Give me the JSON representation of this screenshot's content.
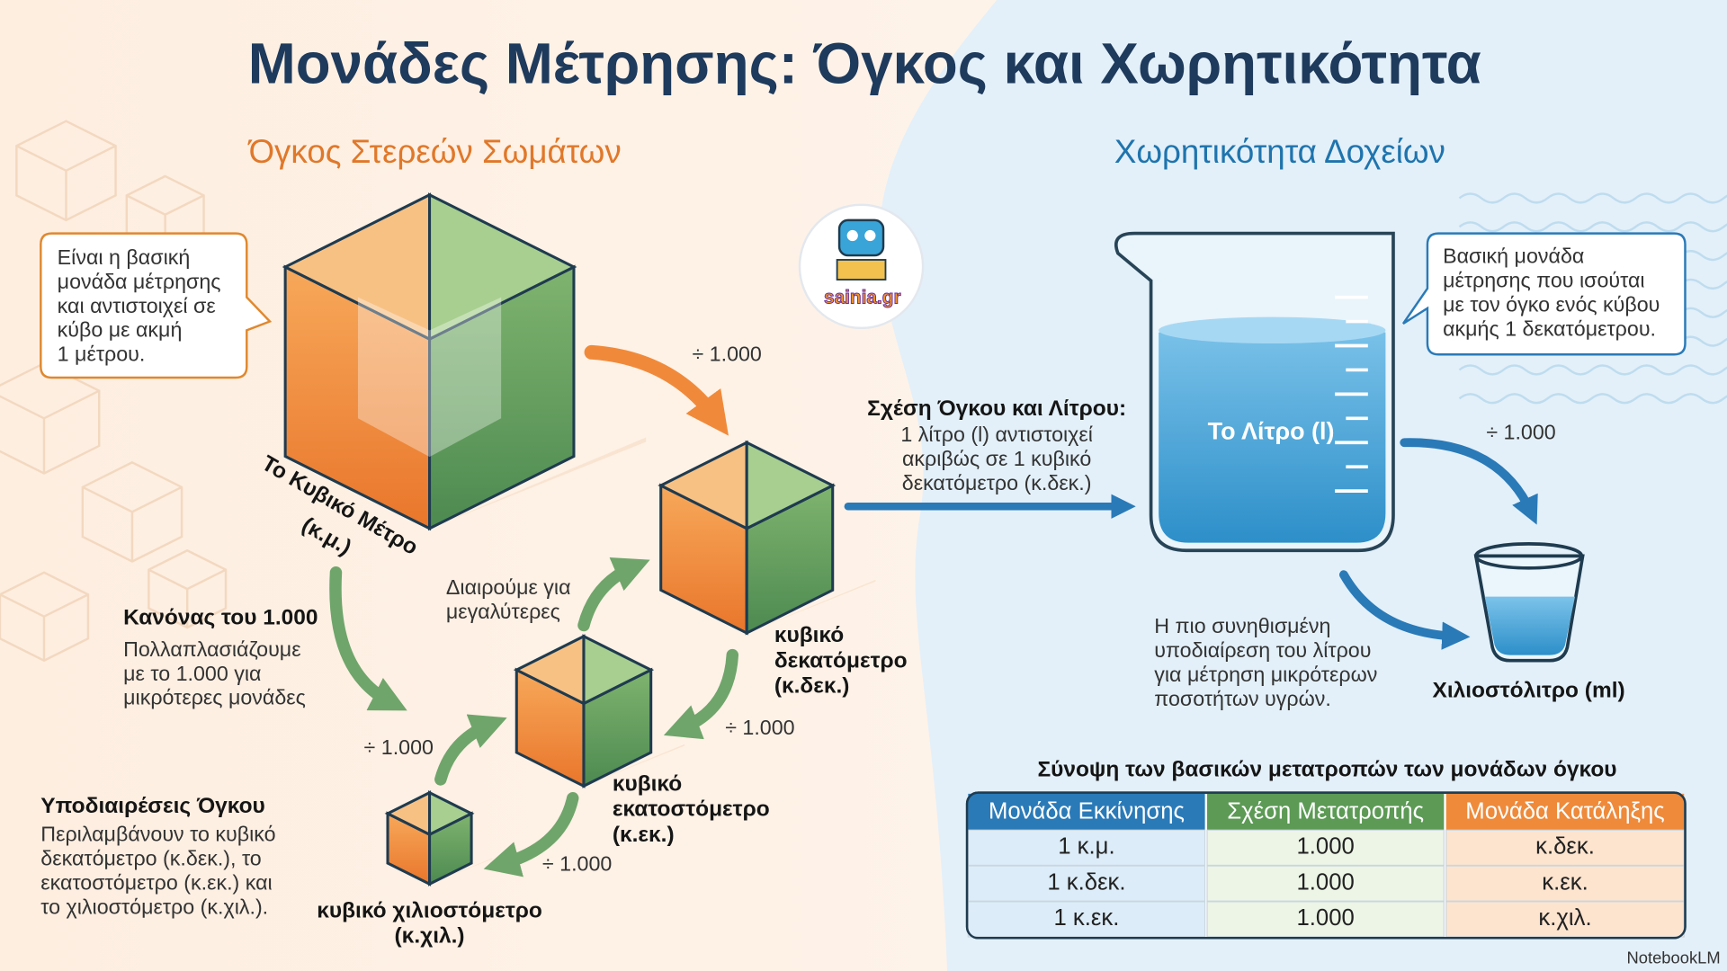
{
  "title": "Μονάδες Μέτρησης: Όγκος και Χωρητικότητα",
  "solids": {
    "heading": "Όγκος Στερεών Σωμάτων",
    "callout": [
      "Είναι η βασική",
      "μονάδα μέτρησης",
      "και αντιστοιχεί σε",
      "κύβο με ακμή",
      "1 μέτρου."
    ],
    "cubic_meter_label": [
      "Το Κυβικό Μέτρο",
      "(κ.μ.)"
    ],
    "divide_labels": [
      "÷ 1.000",
      "÷ 1.000",
      "÷ 1.000",
      "÷ 1.000"
    ],
    "multiply_note": [
      "Διαιρούμε για",
      "μεγαλύτερες"
    ],
    "rule": {
      "title": "Κανόνας του 1.000",
      "lines": [
        "Πολλαπλασιάζουμε",
        "με το 1.000 για",
        "μικρότερες μονάδες"
      ]
    },
    "cubic_decimeter_label": [
      "κυβικό",
      "δεκατόμετρο",
      "(κ.δεκ.)"
    ],
    "cubic_centimeter_label": [
      "κυβικό",
      "εκατοστόμετρο",
      "(κ.εκ.)"
    ],
    "cubic_millimeter_label": [
      "κυβικό χιλιοστόμετρο",
      "(κ.χιλ.)"
    ],
    "subdivisions": {
      "title": "Υποδιαιρέσεις Όγκου",
      "lines": [
        "Περιλαμβάνουν το κυβικό",
        "δεκατόμετρο (κ.δεκ.), το",
        "εκατοστόμετρο (κ.εκ.) και",
        "το χιλιοστόμετρο (κ.χιλ.)."
      ]
    }
  },
  "logo": "sainia.gr",
  "relation": {
    "title": "Σχέση Όγκου και Λίτρου:",
    "lines": [
      "1 λίτρο (l) αντιστοιχεί",
      "ακριβώς σε 1 κυβικό",
      "δεκατόμετρο (κ.δεκ.)"
    ]
  },
  "capacity": {
    "heading": "Χωρητικότητα Δοχείων",
    "liter_label": "Το Λίτρο (l)",
    "callout": [
      "Βασική μονάδα",
      "μέτρησης που ισούται",
      "με τον όγκο ενός κύβου",
      "ακμής 1 δεκατόμετρου."
    ],
    "divide_label": "÷ 1.000",
    "ml_note": [
      "Η πιο συνηθισμένη",
      "υποδιαίρεση του λίτρου",
      "για μέτρηση μικρότερων",
      "ποσοτήτων υγρών."
    ],
    "ml_label": "Χιλιοστόλιτρο (ml)"
  },
  "table": {
    "title": "Σύνοψη των βασικών μετατροπών των μονάδων όγκου",
    "columns": [
      "Μονάδα Εκκίνησης",
      "Σχέση Μετατροπής",
      "Μονάδα Κατάληξης"
    ],
    "rows": [
      [
        "1 κ.μ.",
        "1.000",
        "κ.δεκ."
      ],
      [
        "1 κ.δεκ.",
        "1.000",
        "κ.εκ."
      ],
      [
        "1 κ.εκ.",
        "1.000",
        "κ.χιλ."
      ]
    ]
  },
  "footer": "NotebookLM"
}
